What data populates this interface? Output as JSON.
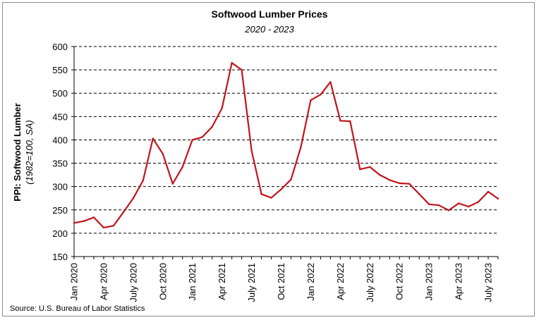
{
  "chart_data": {
    "type": "line",
    "title": "Softwood Lumber Prices",
    "subtitle": "2020 - 2023",
    "ylabel": "PPI: Softwood Lumber",
    "ylabel_sub": "(1982=100, SA)",
    "source": "Source: U.S. Bureau of Labor Statistics",
    "ylim": [
      150,
      600
    ],
    "yticks": [
      150,
      200,
      250,
      300,
      350,
      400,
      450,
      500,
      550,
      600
    ],
    "grid": "horizontal-dashed",
    "line_color": "#c0141c",
    "xtick_labels": [
      {
        "index": 0,
        "label": "Jan 2020"
      },
      {
        "index": 3,
        "label": "Apr 2020"
      },
      {
        "index": 6,
        "label": "July 2020"
      },
      {
        "index": 9,
        "label": "Oct 2020"
      },
      {
        "index": 12,
        "label": "Jan 2021"
      },
      {
        "index": 15,
        "label": "Apr 2021"
      },
      {
        "index": 18,
        "label": "July 2021"
      },
      {
        "index": 21,
        "label": "Oct 2021"
      },
      {
        "index": 24,
        "label": "Jan 2022"
      },
      {
        "index": 27,
        "label": "Apr 2022"
      },
      {
        "index": 30,
        "label": "July 2022"
      },
      {
        "index": 33,
        "label": "Oct 2022"
      },
      {
        "index": 36,
        "label": "Jan 2023"
      },
      {
        "index": 39,
        "label": "Apr 2023"
      },
      {
        "index": 42,
        "label": "July 2023"
      }
    ],
    "series": [
      {
        "values": [
          222,
          226,
          234,
          212,
          216,
          245,
          275,
          313,
          403,
          370,
          306,
          342,
          400,
          406,
          428,
          468,
          565,
          550,
          377,
          284,
          276,
          294,
          315,
          385,
          485,
          497,
          524,
          441,
          440,
          337,
          342,
          325,
          314,
          307,
          306,
          284,
          262,
          260,
          249,
          264,
          257,
          267,
          289,
          274
        ]
      }
    ]
  }
}
